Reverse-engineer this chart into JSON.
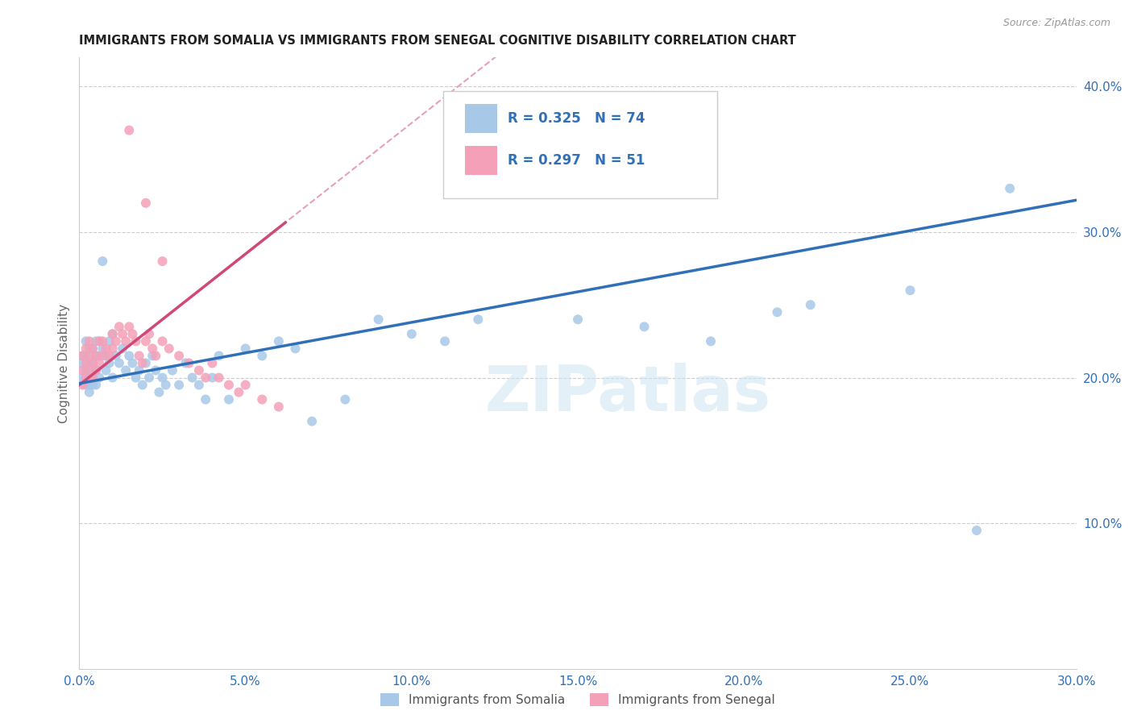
{
  "title": "IMMIGRANTS FROM SOMALIA VS IMMIGRANTS FROM SENEGAL COGNITIVE DISABILITY CORRELATION CHART",
  "source": "Source: ZipAtlas.com",
  "ylabel": "Cognitive Disability",
  "xlim": [
    0.0,
    0.3
  ],
  "ylim": [
    0.0,
    0.42
  ],
  "xticks": [
    0.0,
    0.05,
    0.1,
    0.15,
    0.2,
    0.25,
    0.3
  ],
  "yticks": [
    0.1,
    0.2,
    0.3,
    0.4
  ],
  "xtick_labels": [
    "0.0%",
    "5.0%",
    "10.0%",
    "15.0%",
    "20.0%",
    "25.0%",
    "30.0%"
  ],
  "ytick_labels": [
    "10.0%",
    "20.0%",
    "30.0%",
    "40.0%"
  ],
  "somalia_color": "#a8c8e8",
  "senegal_color": "#f4a0b8",
  "somalia_line_color": "#3070b8",
  "senegal_line_color": "#d04878",
  "senegal_dash_color": "#e8a0b8",
  "R_somalia": 0.325,
  "N_somalia": 74,
  "R_senegal": 0.297,
  "N_senegal": 51,
  "text_color": "#3070b8",
  "somalia_x": [
    0.001,
    0.001,
    0.001,
    0.002,
    0.002,
    0.002,
    0.002,
    0.003,
    0.003,
    0.003,
    0.003,
    0.003,
    0.004,
    0.004,
    0.004,
    0.004,
    0.005,
    0.005,
    0.005,
    0.005,
    0.006,
    0.006,
    0.006,
    0.007,
    0.007,
    0.008,
    0.008,
    0.009,
    0.009,
    0.01,
    0.01,
    0.011,
    0.012,
    0.013,
    0.014,
    0.015,
    0.016,
    0.017,
    0.018,
    0.019,
    0.02,
    0.021,
    0.022,
    0.023,
    0.024,
    0.025,
    0.026,
    0.028,
    0.03,
    0.032,
    0.034,
    0.036,
    0.038,
    0.04,
    0.042,
    0.045,
    0.05,
    0.055,
    0.06,
    0.065,
    0.07,
    0.08,
    0.09,
    0.1,
    0.11,
    0.12,
    0.15,
    0.17,
    0.19,
    0.21,
    0.22,
    0.25,
    0.27,
    0.28
  ],
  "somalia_y": [
    0.215,
    0.21,
    0.2,
    0.225,
    0.215,
    0.205,
    0.195,
    0.22,
    0.21,
    0.2,
    0.195,
    0.19,
    0.22,
    0.21,
    0.2,
    0.195,
    0.225,
    0.215,
    0.205,
    0.195,
    0.225,
    0.215,
    0.2,
    0.28,
    0.22,
    0.215,
    0.205,
    0.225,
    0.21,
    0.23,
    0.2,
    0.215,
    0.21,
    0.22,
    0.205,
    0.215,
    0.21,
    0.2,
    0.205,
    0.195,
    0.21,
    0.2,
    0.215,
    0.205,
    0.19,
    0.2,
    0.195,
    0.205,
    0.195,
    0.21,
    0.2,
    0.195,
    0.185,
    0.2,
    0.215,
    0.185,
    0.22,
    0.215,
    0.225,
    0.22,
    0.17,
    0.185,
    0.24,
    0.23,
    0.225,
    0.24,
    0.24,
    0.235,
    0.225,
    0.245,
    0.25,
    0.26,
    0.095,
    0.33
  ],
  "senegal_x": [
    0.001,
    0.001,
    0.001,
    0.002,
    0.002,
    0.002,
    0.003,
    0.003,
    0.003,
    0.004,
    0.004,
    0.004,
    0.005,
    0.005,
    0.006,
    0.006,
    0.007,
    0.007,
    0.008,
    0.009,
    0.01,
    0.01,
    0.011,
    0.012,
    0.013,
    0.014,
    0.015,
    0.016,
    0.017,
    0.018,
    0.019,
    0.02,
    0.021,
    0.022,
    0.023,
    0.025,
    0.027,
    0.03,
    0.033,
    0.036,
    0.038,
    0.04,
    0.042,
    0.045,
    0.048,
    0.05,
    0.055,
    0.06,
    0.015,
    0.02,
    0.025
  ],
  "senegal_y": [
    0.215,
    0.205,
    0.195,
    0.22,
    0.21,
    0.2,
    0.225,
    0.215,
    0.205,
    0.22,
    0.21,
    0.2,
    0.215,
    0.205,
    0.225,
    0.21,
    0.225,
    0.215,
    0.22,
    0.215,
    0.23,
    0.22,
    0.225,
    0.235,
    0.23,
    0.225,
    0.235,
    0.23,
    0.225,
    0.215,
    0.21,
    0.225,
    0.23,
    0.22,
    0.215,
    0.225,
    0.22,
    0.215,
    0.21,
    0.205,
    0.2,
    0.21,
    0.2,
    0.195,
    0.19,
    0.195,
    0.185,
    0.18,
    0.37,
    0.32,
    0.28
  ],
  "slope_somalia": 0.42,
  "intercept_somalia": 0.196,
  "slope_senegal": 1.8,
  "intercept_senegal": 0.195
}
